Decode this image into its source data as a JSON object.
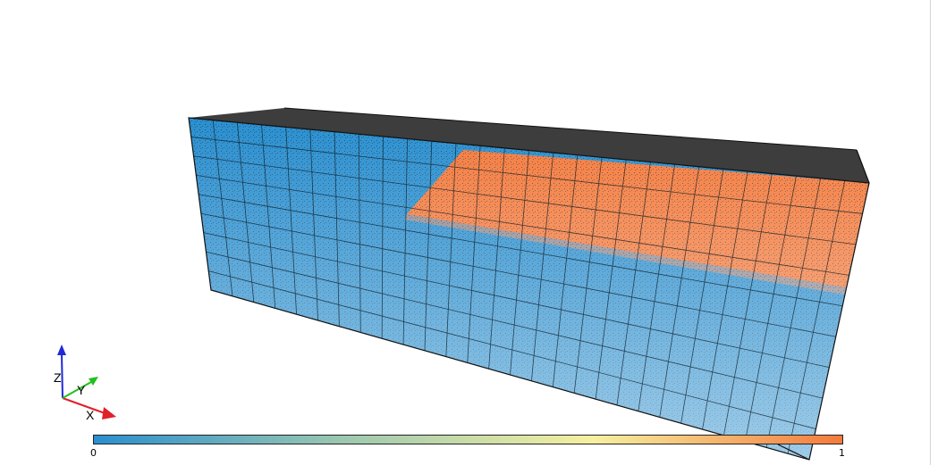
{
  "viewport": {
    "background": "#ffffff",
    "dataset": {
      "fields": [
        {
          "value": 0,
          "color": "#2a8fcf"
        },
        {
          "value": 1,
          "color": "#f47a3c"
        }
      ],
      "grid_columns": 28,
      "grid_rows": 9
    }
  },
  "orientation_axes": {
    "x_label": "X",
    "y_label": "Y",
    "z_label": "Z",
    "x_color": "#e0202a",
    "y_color": "#22c01e",
    "z_color": "#1f2ad6"
  },
  "colorbar": {
    "min_label": "0",
    "max_label": "1",
    "colors": [
      "#2a8fcf",
      "#9cc8b0",
      "#f6f0a0",
      "#f47a3c"
    ]
  }
}
